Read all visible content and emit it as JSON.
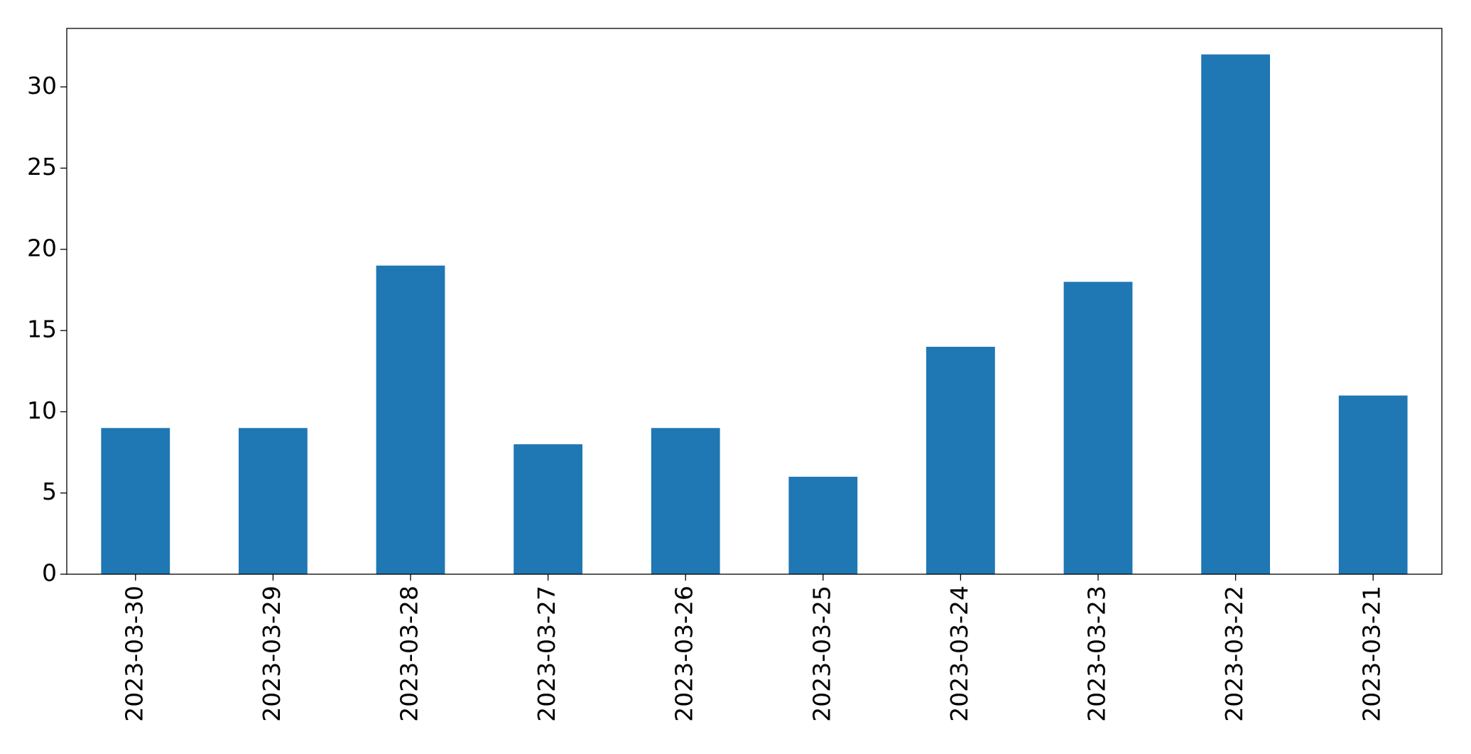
{
  "chart_data": {
    "type": "bar",
    "categories": [
      "2023-03-30",
      "2023-03-29",
      "2023-03-28",
      "2023-03-27",
      "2023-03-26",
      "2023-03-25",
      "2023-03-24",
      "2023-03-23",
      "2023-03-22",
      "2023-03-21"
    ],
    "values": [
      9,
      9,
      19,
      8,
      9,
      6,
      14,
      18,
      32,
      11
    ],
    "color": "#1f77b4",
    "ylim": [
      0,
      33.6
    ],
    "yticks": [
      0,
      5,
      10,
      15,
      20,
      25,
      30
    ],
    "grid": false
  }
}
